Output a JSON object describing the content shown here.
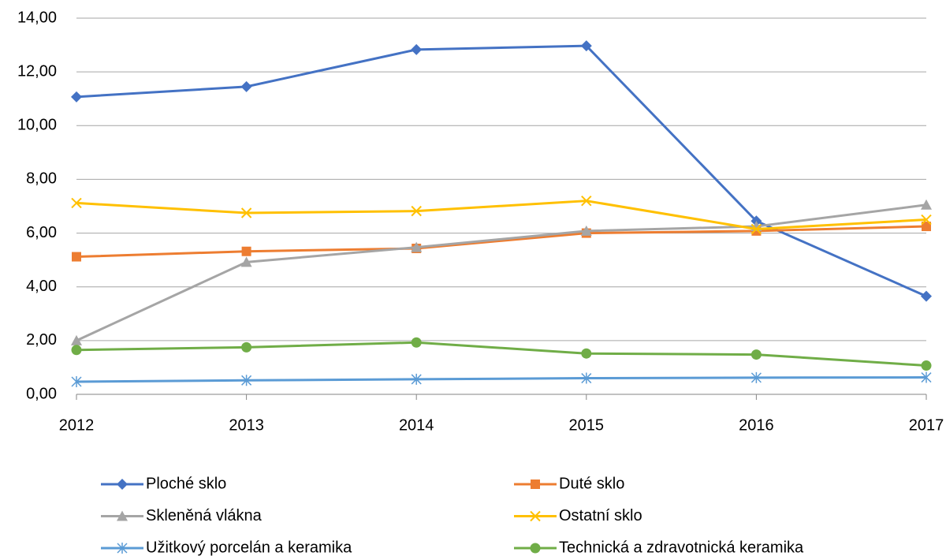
{
  "chart_data": {
    "type": "line",
    "categories": [
      "2012",
      "2013",
      "2014",
      "2015",
      "2016",
      "2017"
    ],
    "ylim": [
      0,
      14
    ],
    "yticks": [
      {
        "value": 0,
        "label": "0,00"
      },
      {
        "value": 2,
        "label": "2,00"
      },
      {
        "value": 4,
        "label": "4,00"
      },
      {
        "value": 6,
        "label": "6,00"
      },
      {
        "value": 8,
        "label": "8,00"
      },
      {
        "value": 10,
        "label": "10,00"
      },
      {
        "value": 12,
        "label": "12,00"
      },
      {
        "value": 14,
        "label": "14,00"
      }
    ],
    "grid": true,
    "legend": "bottom",
    "series": [
      {
        "name": "Ploché sklo",
        "color": "#4472c4",
        "marker": "diamond",
        "values": [
          11.07,
          11.45,
          12.83,
          12.97,
          6.45,
          3.65
        ]
      },
      {
        "name": "Duté sklo",
        "color": "#ed7d31",
        "marker": "square",
        "values": [
          5.12,
          5.32,
          5.43,
          6.0,
          6.08,
          6.25
        ]
      },
      {
        "name": "Skleněná vlákna",
        "color": "#a5a5a5",
        "marker": "triangle",
        "values": [
          2.0,
          4.92,
          5.47,
          6.08,
          6.25,
          7.05
        ]
      },
      {
        "name": "Ostatní sklo",
        "color": "#ffc000",
        "marker": "x",
        "values": [
          7.12,
          6.75,
          6.82,
          7.2,
          6.15,
          6.5
        ]
      },
      {
        "name": "Užitkový porcelán a keramika",
        "color": "#5b9bd5",
        "marker": "star",
        "values": [
          0.47,
          0.52,
          0.56,
          0.6,
          0.62,
          0.63
        ]
      },
      {
        "name": "Technická a zdravotnická keramika",
        "color": "#70ad47",
        "marker": "circle",
        "values": [
          1.65,
          1.75,
          1.93,
          1.52,
          1.48,
          1.07
        ]
      }
    ]
  }
}
